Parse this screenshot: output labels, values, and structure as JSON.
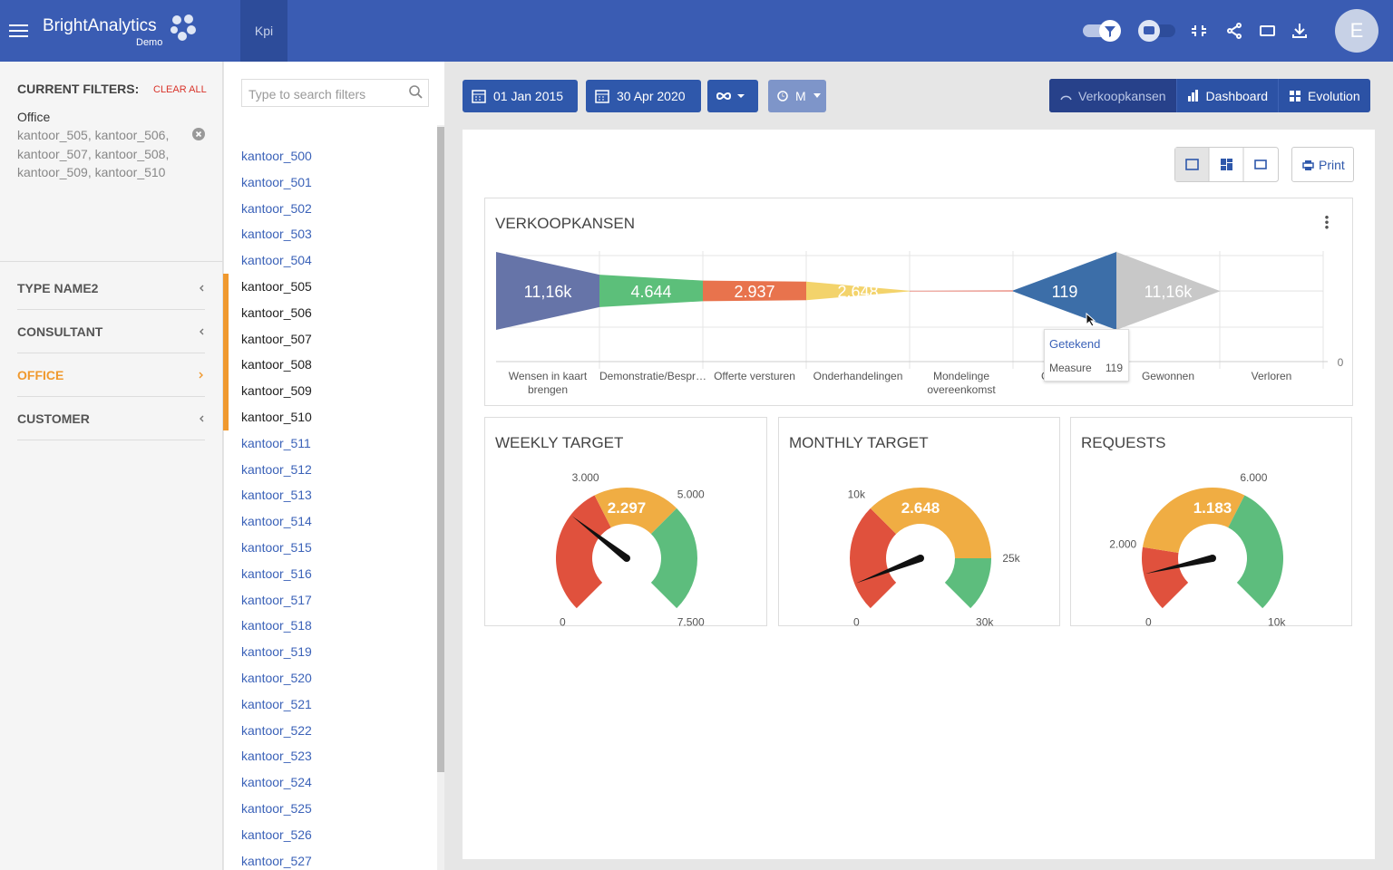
{
  "header": {
    "brand": "BrightAnalytics",
    "brand_sub": "Demo",
    "tab": "Kpi",
    "avatar": "E"
  },
  "filters": {
    "title": "CURRENT FILTERS:",
    "clear_all": "CLEAR ALL",
    "active_name": "Office",
    "active_values": "kantoor_505, kantoor_506, kantoor_507, kantoor_508, kantoor_509, kantoor_510"
  },
  "dimensions": [
    {
      "label": "TYPE NAME2",
      "active": false
    },
    {
      "label": "CONSULTANT",
      "active": false
    },
    {
      "label": "OFFICE",
      "active": true
    },
    {
      "label": "CUSTOMER",
      "active": false
    }
  ],
  "search_placeholder": "Type to search filters",
  "filter_items": [
    {
      "label": "kantoor_500",
      "selected": false
    },
    {
      "label": "kantoor_501",
      "selected": false
    },
    {
      "label": "kantoor_502",
      "selected": false
    },
    {
      "label": "kantoor_503",
      "selected": false
    },
    {
      "label": "kantoor_504",
      "selected": false
    },
    {
      "label": "kantoor_505",
      "selected": true
    },
    {
      "label": "kantoor_506",
      "selected": true
    },
    {
      "label": "kantoor_507",
      "selected": true
    },
    {
      "label": "kantoor_508",
      "selected": true
    },
    {
      "label": "kantoor_509",
      "selected": true
    },
    {
      "label": "kantoor_510",
      "selected": true
    },
    {
      "label": "kantoor_511",
      "selected": false
    },
    {
      "label": "kantoor_512",
      "selected": false
    },
    {
      "label": "kantoor_513",
      "selected": false
    },
    {
      "label": "kantoor_514",
      "selected": false
    },
    {
      "label": "kantoor_515",
      "selected": false
    },
    {
      "label": "kantoor_516",
      "selected": false
    },
    {
      "label": "kantoor_517",
      "selected": false
    },
    {
      "label": "kantoor_518",
      "selected": false
    },
    {
      "label": "kantoor_519",
      "selected": false
    },
    {
      "label": "kantoor_520",
      "selected": false
    },
    {
      "label": "kantoor_521",
      "selected": false
    },
    {
      "label": "kantoor_522",
      "selected": false
    },
    {
      "label": "kantoor_523",
      "selected": false
    },
    {
      "label": "kantoor_524",
      "selected": false
    },
    {
      "label": "kantoor_525",
      "selected": false
    },
    {
      "label": "kantoor_526",
      "selected": false
    },
    {
      "label": "kantoor_527",
      "selected": false
    }
  ],
  "toolbar": {
    "start_date": "01 Jan 2015",
    "end_date": "30 Apr 2020",
    "period": "M",
    "views": [
      {
        "label": "Verkoopkansen",
        "active": true
      },
      {
        "label": "Dashboard",
        "active": false
      },
      {
        "label": "Evolution",
        "active": false
      }
    ],
    "print": "Print"
  },
  "chart_data": [
    {
      "type": "funnel",
      "title": "VERKOOPKANSEN",
      "categories": [
        "Wensen in kaart brengen",
        "Demonstratie/Bespr…",
        "Offerte versturen",
        "Onderhandelingen",
        "Mondelinge overeenkomst",
        "Getekend",
        "Gewonnen",
        "Verloren"
      ],
      "values": [
        11160,
        4644,
        2937,
        2648,
        20,
        119,
        11160,
        0
      ],
      "value_labels": [
        "11,16k",
        "4.644",
        "2.937",
        "2.648",
        null,
        "119",
        "11,16k",
        null
      ],
      "colors": [
        "#6674a8",
        "#5cbf7a",
        "#e8734d",
        "#f3d36b",
        "#e05a4a",
        "#3c6ea8",
        "#c8c8c8",
        "#dddddd"
      ],
      "yticks": [
        0
      ],
      "tooltip": {
        "title": "Getekend",
        "label": "Measure",
        "value": 119
      }
    },
    {
      "type": "gauge",
      "title": "WEEKLY TARGET",
      "values": [
        2297
      ],
      "value_labels": [
        "2.297"
      ],
      "ylim": [
        0,
        7500
      ],
      "yticks": [
        0,
        {
          "value": 3000,
          "label": "3.000"
        },
        {
          "value": 5000,
          "label": "5.000"
        },
        {
          "value": 7500,
          "label": "7.500"
        }
      ],
      "band_colors": [
        "#e0513d",
        "#f0ad43",
        "#5dbd7d"
      ]
    },
    {
      "type": "gauge",
      "title": "MONTHLY TARGET",
      "values": [
        2648
      ],
      "value_labels": [
        "2.648"
      ],
      "ylim": [
        0,
        30000
      ],
      "yticks": [
        0,
        {
          "value": 10000,
          "label": "10k"
        },
        {
          "value": 25000,
          "label": "25k"
        },
        {
          "value": 30000,
          "label": "30k"
        }
      ],
      "band_colors": [
        "#e0513d",
        "#f0ad43",
        "#5dbd7d"
      ]
    },
    {
      "type": "gauge",
      "title": "REQUESTS",
      "values": [
        1183
      ],
      "value_labels": [
        "1.183"
      ],
      "ylim": [
        0,
        10000
      ],
      "yticks": [
        0,
        {
          "value": 2000,
          "label": "2.000"
        },
        {
          "value": 6000,
          "label": "6.000"
        },
        {
          "value": 10000,
          "label": "10k"
        }
      ],
      "band_colors": [
        "#e0513d",
        "#f0ad43",
        "#5dbd7d"
      ]
    }
  ]
}
